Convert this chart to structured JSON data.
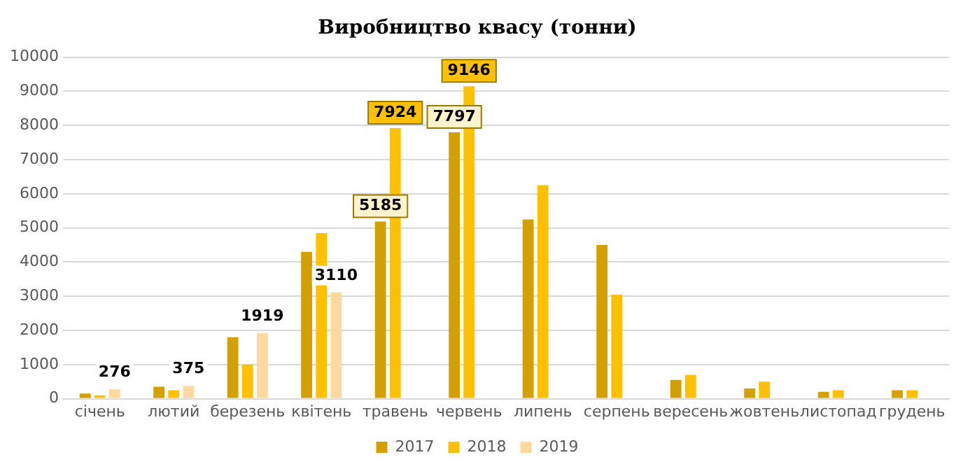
{
  "chart_data": {
    "type": "bar",
    "title": "Виробництво квасу (тонни)",
    "categories": [
      "січень",
      "лютий",
      "березень",
      "квітень",
      "травень",
      "червень",
      "липень",
      "серпень",
      "вересень",
      "жовтень",
      "листопад",
      "грудень"
    ],
    "series": [
      {
        "name": "2017",
        "color": "#d4a000",
        "values": [
          150,
          350,
          1800,
          4300,
          5185,
          7797,
          5250,
          4500,
          550,
          300,
          200,
          250
        ],
        "value_labels": [
          null,
          null,
          null,
          null,
          "5185",
          "7797",
          null,
          null,
          null,
          null,
          null,
          null
        ]
      },
      {
        "name": "2018",
        "color": "#ffc000",
        "values": [
          100,
          250,
          1000,
          4850,
          7924,
          9146,
          6250,
          3050,
          700,
          500,
          250,
          250
        ],
        "value_labels": [
          null,
          null,
          null,
          null,
          "7924",
          "9146",
          null,
          null,
          null,
          null,
          null,
          null
        ]
      },
      {
        "name": "2019",
        "color": "#fdd9a0",
        "values": [
          276,
          375,
          1919,
          3110,
          null,
          null,
          null,
          null,
          null,
          null,
          null,
          null
        ],
        "value_labels": [
          "276",
          "375",
          "1919",
          "3110",
          null,
          null,
          null,
          null,
          null,
          null,
          null,
          null
        ]
      }
    ],
    "ylim": [
      0,
      10000
    ],
    "yticks": [
      0,
      1000,
      2000,
      3000,
      4000,
      5000,
      6000,
      7000,
      8000,
      9000,
      10000
    ],
    "grid": "y",
    "legend": "bottom"
  }
}
